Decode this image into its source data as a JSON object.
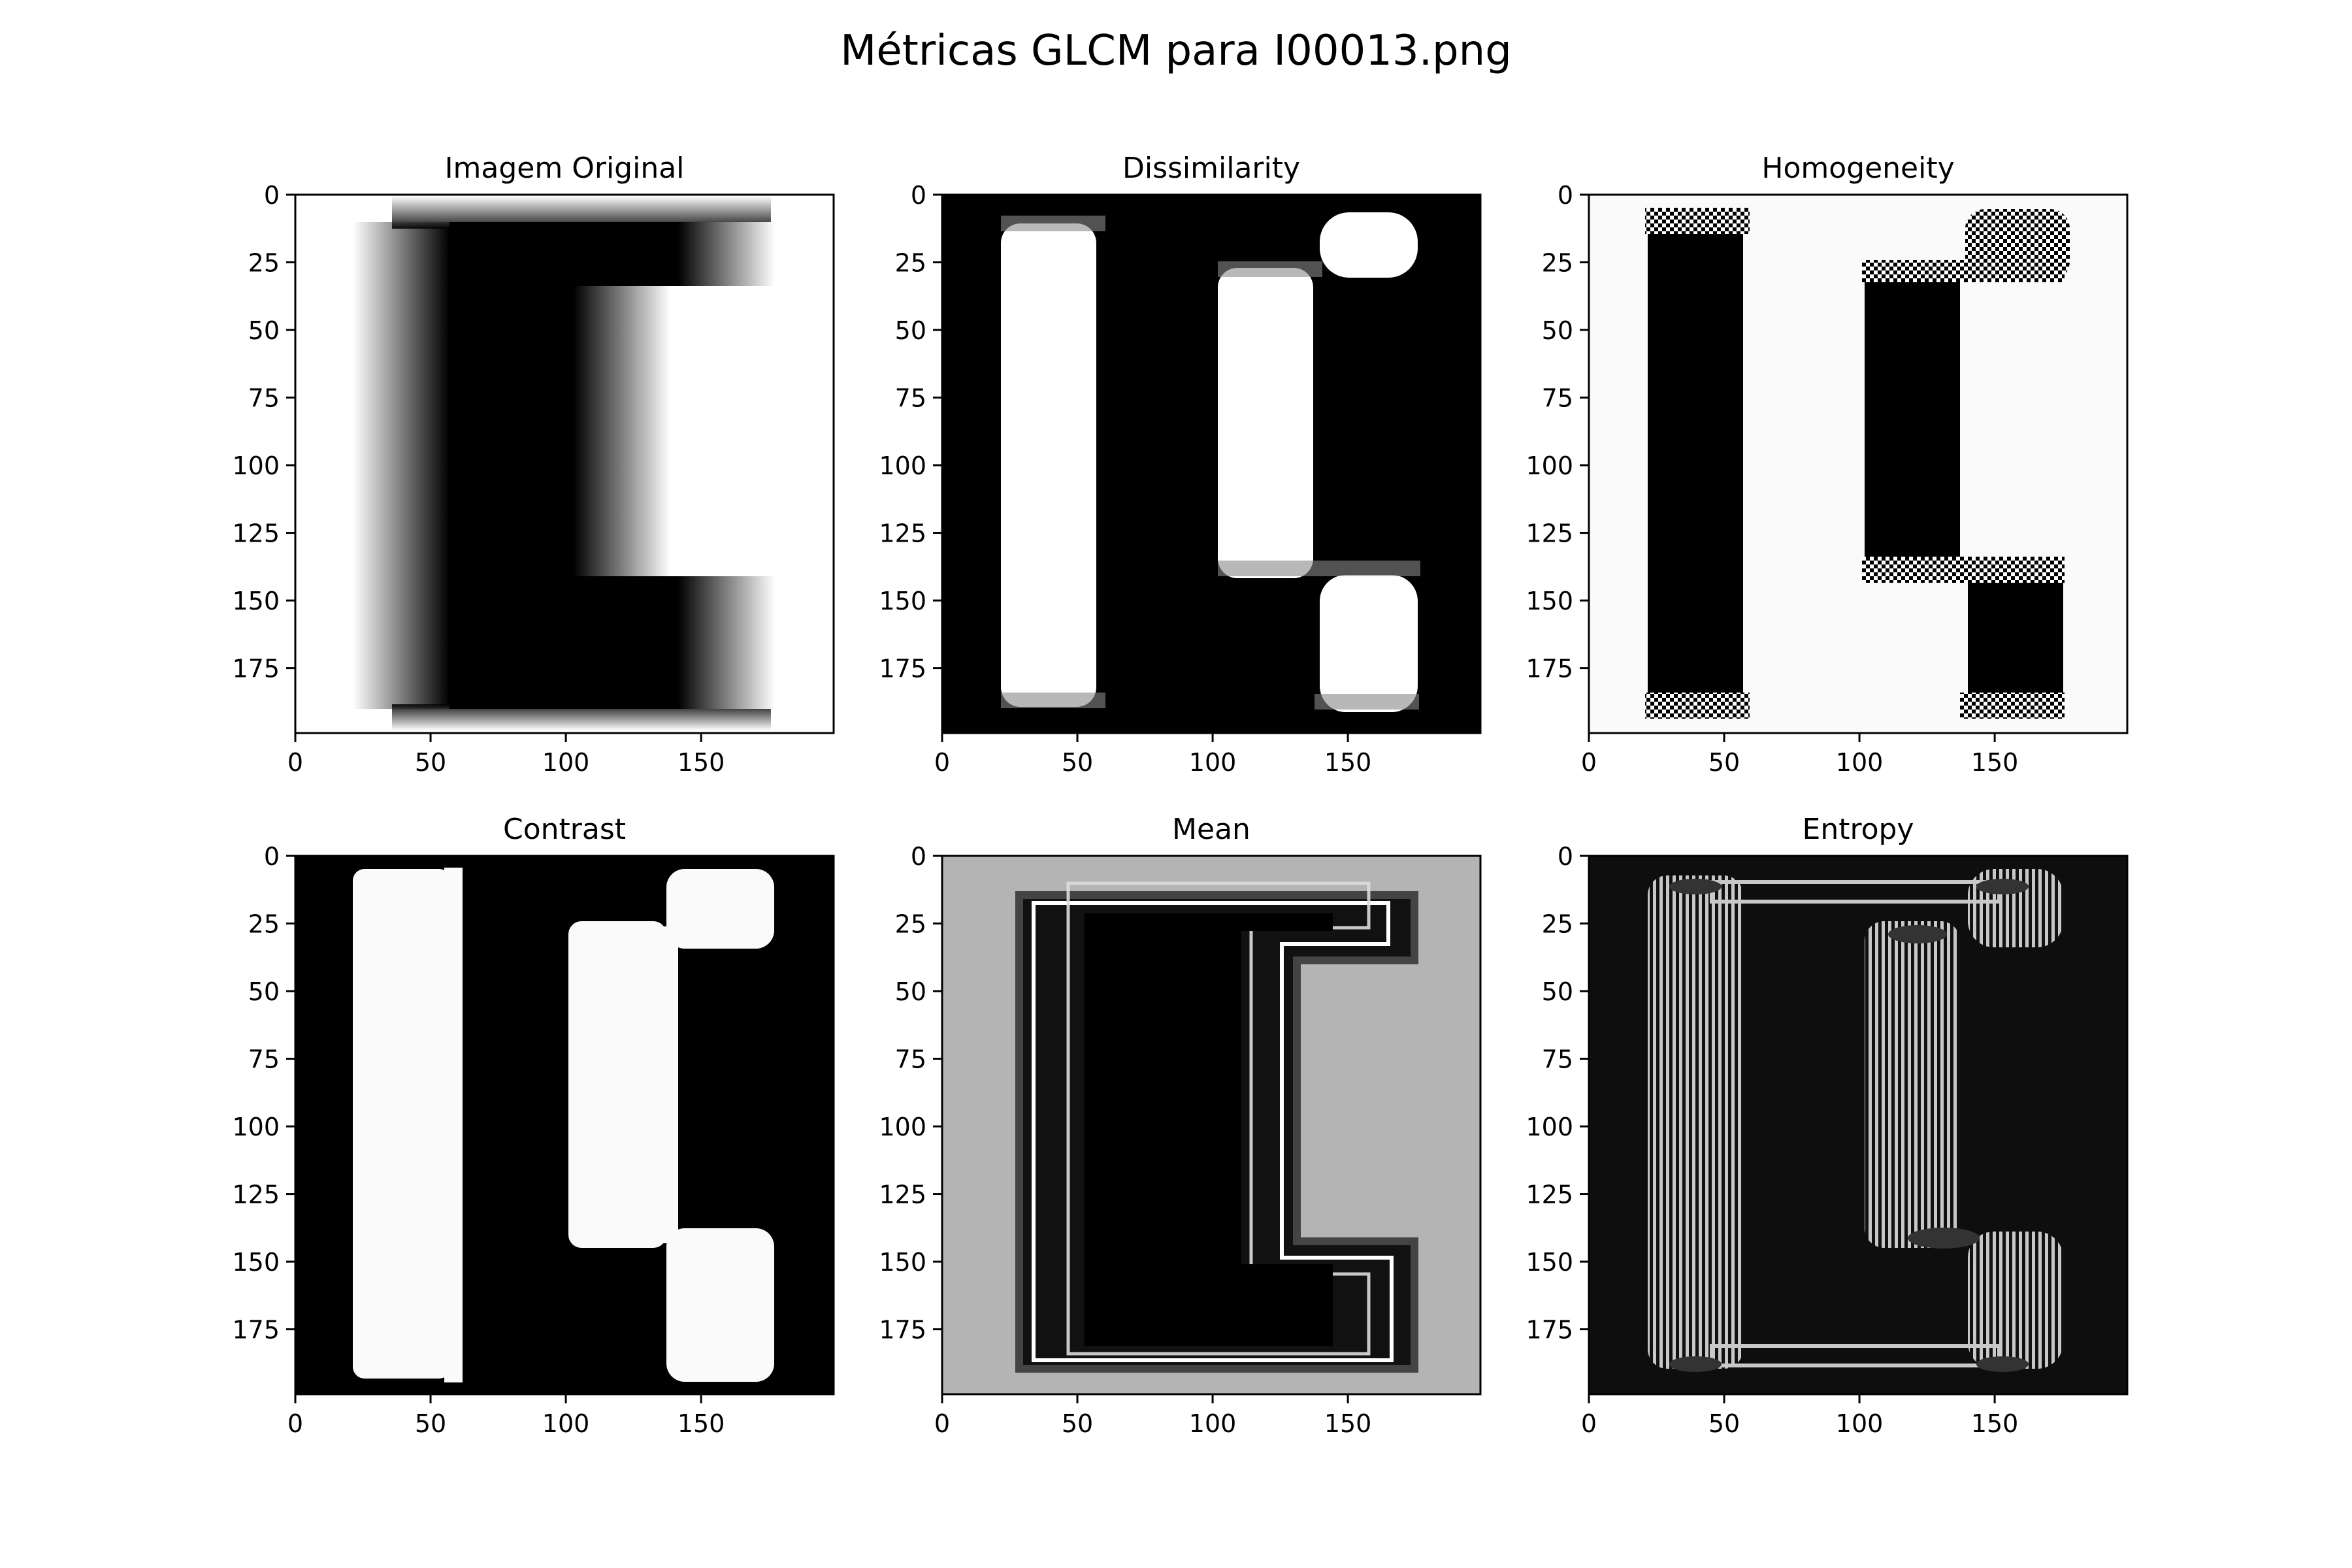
{
  "figure": {
    "title": "Métricas GLCM para I00013.png"
  },
  "colors": {
    "black": "#000000",
    "white": "#ffffff",
    "near_white": "#fafafa",
    "mean_bg": "#b4b4b4",
    "entropy_bg": "#0e0e0e",
    "entropy_ring": "#c8c8c8"
  },
  "chart_data": [
    {
      "type": "image",
      "title": "Imagem Original",
      "colormap": "gray",
      "x_ticks": [
        "0",
        "50",
        "100",
        "150"
      ],
      "y_ticks": [
        "0",
        "25",
        "50",
        "75",
        "100",
        "125",
        "150",
        "175"
      ],
      "xlim": [
        0,
        199
      ],
      "ylim": [
        199,
        0
      ]
    },
    {
      "type": "image",
      "title": "Dissimilarity",
      "colormap": "gray",
      "x_ticks": [
        "0",
        "50",
        "100",
        "150"
      ],
      "y_ticks": [
        "0",
        "25",
        "50",
        "75",
        "100",
        "125",
        "150",
        "175"
      ],
      "xlim": [
        0,
        199
      ],
      "ylim": [
        199,
        0
      ]
    },
    {
      "type": "image",
      "title": "Homogeneity",
      "colormap": "gray",
      "x_ticks": [
        "0",
        "50",
        "100",
        "150"
      ],
      "y_ticks": [
        "0",
        "25",
        "50",
        "75",
        "100",
        "125",
        "150",
        "175"
      ],
      "xlim": [
        0,
        199
      ],
      "ylim": [
        199,
        0
      ]
    },
    {
      "type": "image",
      "title": "Contrast",
      "colormap": "gray",
      "x_ticks": [
        "0",
        "50",
        "100",
        "150"
      ],
      "y_ticks": [
        "0",
        "25",
        "50",
        "75",
        "100",
        "125",
        "150",
        "175"
      ],
      "xlim": [
        0,
        199
      ],
      "ylim": [
        199,
        0
      ]
    },
    {
      "type": "image",
      "title": "Mean",
      "colormap": "gray",
      "x_ticks": [
        "0",
        "50",
        "100",
        "150"
      ],
      "y_ticks": [
        "0",
        "25",
        "50",
        "75",
        "100",
        "125",
        "150",
        "175"
      ],
      "xlim": [
        0,
        199
      ],
      "ylim": [
        199,
        0
      ]
    },
    {
      "type": "image",
      "title": "Entropy",
      "colormap": "gray",
      "x_ticks": [
        "0",
        "50",
        "100",
        "150"
      ],
      "y_ticks": [
        "0",
        "25",
        "50",
        "75",
        "100",
        "125",
        "150",
        "175"
      ],
      "xlim": [
        0,
        199
      ],
      "ylim": [
        199,
        0
      ]
    }
  ]
}
